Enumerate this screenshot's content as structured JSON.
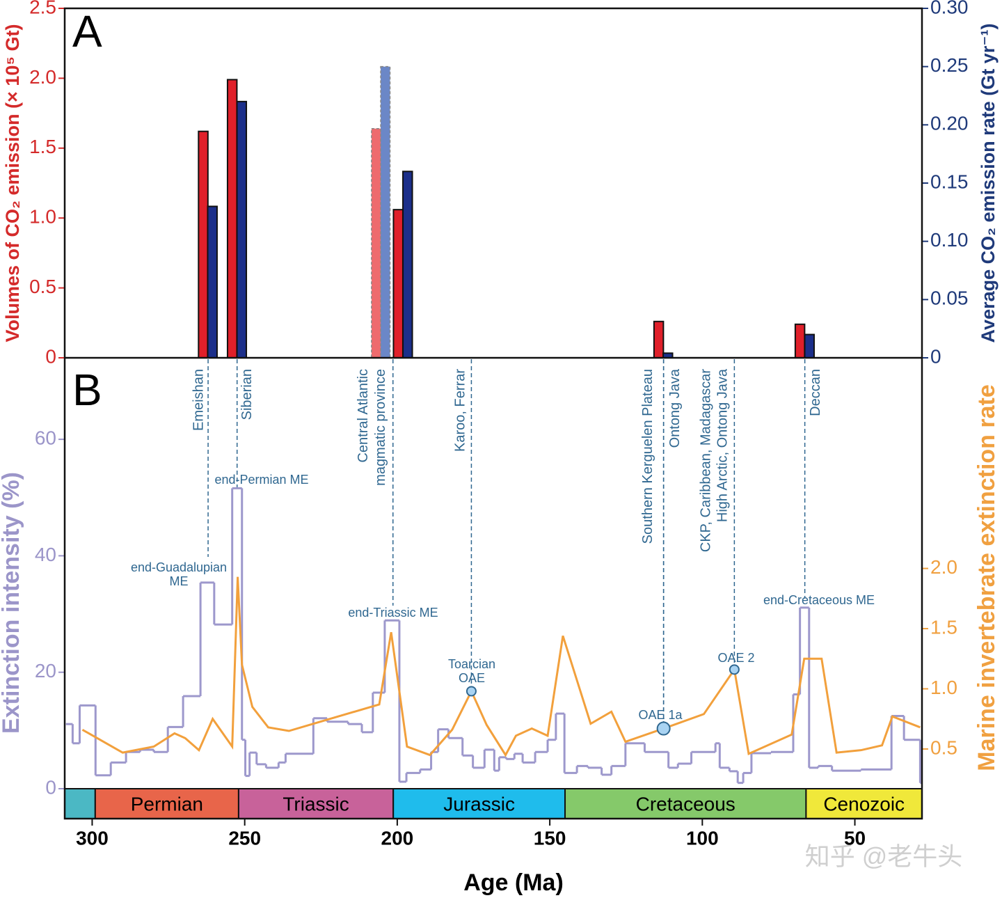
{
  "chart_data": [
    {
      "type": "bar",
      "label": "A",
      "ylabel": "Volumes of CO₂ emission (× 10⁵ Gt)",
      "y2label": "Average CO₂ emission rate (Gt yr⁻¹)",
      "xlim": [
        309,
        28
      ],
      "ylim": [
        0,
        2.5
      ],
      "yticks": [
        0,
        0.5,
        {
          "value": 1,
          "label": "1.0"
        },
        1.5,
        {
          "value": 2,
          "label": "2.0"
        },
        2.5
      ],
      "y2lim": [
        0,
        0.3
      ],
      "y2ticks": [
        0,
        0.05,
        {
          "value": 0.1,
          "label": "0.10"
        },
        0.15,
        {
          "value": 0.2,
          "label": "0.20"
        },
        0.25,
        {
          "value": 0.3,
          "label": "0.30"
        }
      ],
      "series": [
        {
          "color": "#e0202a",
          "x": [
            263.6,
            254.1,
            199.7,
            114.3,
            68.0
          ],
          "values": [
            1.62,
            1.99,
            1.06,
            0.26,
            0.24
          ]
        },
        {
          "color": "#1c2f8a",
          "axis": "y2",
          "x": [
            260.6,
            251.0,
            196.6,
            111.3,
            64.9
          ],
          "values": [
            0.13,
            0.22,
            0.16,
            0.004,
            0.02
          ]
        },
        {
          "color": "#ee6b6e",
          "dashed": true,
          "x": [
            206.9
          ],
          "values": [
            1.64
          ]
        },
        {
          "color": "#6b87c7",
          "dashed": true,
          "axis": "y2",
          "x": [
            203.9
          ],
          "values": [
            0.25
          ]
        }
      ]
    },
    {
      "type": "line",
      "label": "B",
      "xlabel": "Age (Ma)",
      "ylabel": "Extinction intensity (%)",
      "y2label": "Marine invertebrate extinction rate",
      "xlim": [
        309,
        28
      ],
      "xticks": [
        300,
        250,
        200,
        150,
        100,
        50
      ],
      "ylim": [
        0,
        74
      ],
      "yticks": [
        0,
        20,
        40,
        60
      ],
      "y2lim": [
        0.17,
        3.75
      ],
      "y2ticks": [
        0.5,
        {
          "value": 1,
          "label": "1.0"
        },
        1.5,
        {
          "value": 2,
          "label": "2.0"
        }
      ],
      "series": [
        {
          "color": "#9d98cc",
          "step": true,
          "x": [
            308.6,
            306.4,
            304.1,
            298.9,
            293.9,
            288.9,
            284.3,
            279.8,
            275.2,
            270.2,
            264.5,
            260.0,
            254.1,
            250.9,
            249.8,
            248.4,
            246.1,
            243.0,
            238.9,
            236.6,
            227.5,
            223.0,
            216.1,
            211.6,
            208.0,
            204.1,
            199.3,
            197.0,
            192.5,
            188.9,
            186.6,
            183.2,
            178.6,
            175.2,
            171.4,
            168.2,
            166.6,
            164.3,
            161.6,
            158.9,
            154.8,
            150.7,
            148.0,
            145.2,
            141.1,
            137.5,
            133.0,
            129.8,
            125.2,
            118.9,
            111.1,
            108.0,
            103.6,
            95.7,
            94.3,
            91.1,
            88.4,
            86.6,
            83.9,
            77.5,
            70.2,
            68.0,
            65.0,
            62.0,
            57.5,
            48.0,
            38.0,
            33.9,
            28.6
          ],
          "values": [
            11.1,
            7.8,
            14.3,
            2.3,
            4.5,
            6.3,
            6.7,
            6.3,
            10.6,
            15.9,
            35.4,
            28.2,
            51.6,
            8.4,
            2.2,
            6.2,
            4.2,
            3.6,
            4.5,
            6.0,
            12.1,
            11.5,
            11.1,
            9.7,
            16.5,
            28.9,
            1.2,
            2.7,
            3.3,
            6.3,
            10.2,
            8.7,
            5.7,
            3.6,
            6.7,
            3.1,
            5.4,
            5.1,
            6.0,
            4.5,
            6.3,
            8.4,
            12.9,
            2.7,
            3.9,
            3.6,
            2.4,
            3.9,
            7.8,
            6.3,
            3.6,
            4.3,
            6.3,
            7.8,
            3.6,
            3.0,
            1.0,
            2.7,
            6.1,
            6.3,
            16.2,
            31.1,
            3.6,
            3.9,
            3.1,
            3.3,
            12.5,
            8.4,
            1.0
          ]
        },
        {
          "color": "#f2a03c",
          "axis": "y2",
          "x": [
            303.2,
            290.0,
            279.8,
            273.0,
            269.5,
            265.0,
            260.5,
            254.1,
            252.3,
            250.9,
            247.5,
            242.3,
            235.5,
            227.5,
            205.9,
            202.0,
            196.8,
            189.3,
            182.0,
            175.7,
            170.7,
            164.5,
            161.1,
            155.9,
            150.7,
            145.7,
            136.6,
            129.8,
            125.2,
            112.7,
            99.5,
            89.5,
            84.8,
            70.7,
            66.6,
            60.9,
            56.0,
            48.0,
            41.1,
            37.7,
            28.6
          ],
          "values": [
            0.66,
            0.47,
            0.52,
            0.63,
            0.59,
            0.49,
            0.75,
            0.52,
            1.93,
            1.2,
            0.85,
            0.68,
            0.65,
            0.71,
            0.87,
            1.47,
            0.52,
            0.45,
            0.66,
            0.98,
            0.7,
            0.45,
            0.61,
            0.67,
            0.61,
            1.44,
            0.71,
            0.81,
            0.56,
            0.67,
            0.79,
            1.16,
            0.46,
            0.62,
            1.25,
            1.25,
            0.47,
            0.49,
            0.53,
            0.77,
            0.68
          ]
        }
      ],
      "oae": {
        "color": "#a9d3f2",
        "x": [
          175.7,
          112.7,
          89.5
        ],
        "values": [
          0.98,
          0.67,
          1.16
        ],
        "labels": [
          [
            "Toarcian",
            "OAE"
          ],
          [
            "OAE 1a"
          ],
          [
            "OAE 2"
          ]
        ]
      },
      "lips": [
        {
          "x": 262.0,
          "lines": [
            "Emeishan"
          ]
        },
        {
          "x": 252.5,
          "lines": [
            "Siberian"
          ]
        },
        {
          "x": 201.4,
          "lines": [
            "Central Atlantic",
            "magmatic province"
          ]
        },
        {
          "x": 175.7,
          "lines": [
            "Karoo, Ferrar"
          ]
        },
        {
          "x": 112.7,
          "lines": [
            "Southern Kerguelen Plateau"
          ]
        },
        {
          "x": 112.7,
          "lines": [
            "Ontong Java"
          ]
        },
        {
          "x": 89.5,
          "lines": [
            "CKP, Caribbean, Madagascar",
            "High Arctic, Ontong Java"
          ]
        },
        {
          "x": 66.4,
          "lines": [
            "Deccan"
          ]
        }
      ],
      "me_labels": [
        [
          "end-Guadalupian",
          "ME"
        ],
        [
          "end-Permian ME"
        ],
        [
          "end-Triassic ME"
        ],
        [
          "end-Cretaceous ME"
        ]
      ],
      "periods": [
        {
          "name": null,
          "start": 309,
          "end": 299,
          "color": "#4bb8c4"
        },
        {
          "name": "Permian",
          "start": 299,
          "end": 252,
          "color": "#e8654a"
        },
        {
          "name": "Triassic",
          "start": 252,
          "end": 201.3,
          "color": "#c8629a"
        },
        {
          "name": "Jurassic",
          "start": 201.3,
          "end": 145,
          "color": "#1fbcec"
        },
        {
          "name": "Cretaceous",
          "start": 145,
          "end": 66,
          "color": "#85c96a"
        },
        {
          "name": "Cenozoic",
          "start": 66,
          "end": 28,
          "color": "#f0e83a"
        }
      ]
    }
  ],
  "watermark": "知乎 @老牛头"
}
